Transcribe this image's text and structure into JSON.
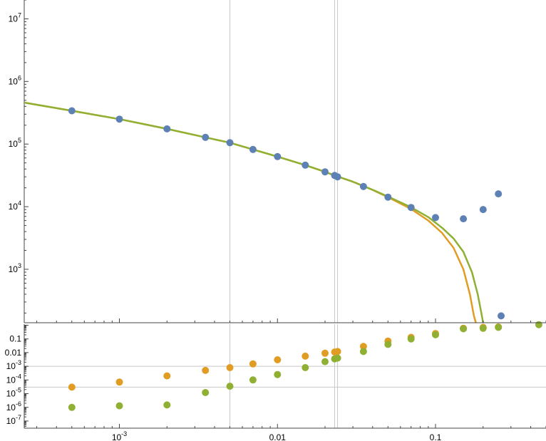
{
  "chart_data": [
    {
      "type": "scatter",
      "title": "",
      "xlabel": "",
      "ylabel": "",
      "x_scale": "log",
      "y_scale": "log",
      "xlim": [
        0.00025,
        0.5
      ],
      "ylim": [
        140,
        20000000
      ],
      "grid": "vertical reference lines at x = 0.005, 0.023, 0.024",
      "vlines": [
        0.005,
        0.023,
        0.024
      ],
      "y_tick_labels": [
        {
          "value": 1000,
          "base": "10",
          "exp": "3"
        },
        {
          "value": 10000,
          "base": "10",
          "exp": "4"
        },
        {
          "value": 100000,
          "base": "10",
          "exp": "5"
        },
        {
          "value": 1000000,
          "base": "10",
          "exp": "6"
        },
        {
          "value": 10000000,
          "base": "10",
          "exp": "7"
        }
      ],
      "series": [
        {
          "kind": "points",
          "color": "#5e81b5",
          "x": [
            0.0005,
            0.001,
            0.002,
            0.0035,
            0.005,
            0.007,
            0.01,
            0.015,
            0.02,
            0.023,
            0.024,
            0.035,
            0.05,
            0.07,
            0.1,
            0.15,
            0.2,
            0.25,
            0.26
          ],
          "y": [
            340000,
            250000,
            175000,
            128000,
            105000,
            82000,
            63000,
            46000,
            36000,
            31500,
            30000,
            21000,
            14200,
            9700,
            6700,
            6400,
            9000,
            16000,
            180
          ]
        },
        {
          "kind": "line",
          "color": "#e19c24",
          "x": [
            0.00025,
            0.0005,
            0.001,
            0.002,
            0.0035,
            0.005,
            0.007,
            0.01,
            0.015,
            0.02,
            0.023,
            0.03,
            0.04,
            0.05,
            0.07,
            0.09,
            0.11,
            0.13,
            0.15,
            0.165,
            0.175,
            0.18
          ],
          "y": [
            460000,
            340000,
            250000,
            175000,
            128000,
            105000,
            82000,
            63000,
            46000,
            36000,
            31500,
            25000,
            18500,
            14200,
            9200,
            6000,
            3800,
            2200,
            1000,
            400,
            180,
            140
          ]
        },
        {
          "kind": "line",
          "color": "#8fb032",
          "x": [
            0.00025,
            0.0005,
            0.001,
            0.002,
            0.0035,
            0.005,
            0.007,
            0.01,
            0.015,
            0.02,
            0.023,
            0.03,
            0.04,
            0.05,
            0.07,
            0.09,
            0.11,
            0.13,
            0.15,
            0.17,
            0.185,
            0.195,
            0.2
          ],
          "y": [
            460000,
            340000,
            250000,
            175000,
            128000,
            105000,
            82000,
            63000,
            46000,
            36000,
            31500,
            25000,
            18600,
            14500,
            9800,
            6800,
            4600,
            3100,
            1900,
            900,
            400,
            200,
            140
          ]
        }
      ]
    },
    {
      "type": "scatter",
      "title": "",
      "xlabel": "",
      "ylabel": "",
      "x_scale": "log",
      "y_scale": "log",
      "xlim": [
        0.00025,
        0.5
      ],
      "ylim": [
        3e-08,
        1.2
      ],
      "grid": "horizontal reference lines at y = 0.001 and 0.00003; vertical lines at x = 0.005, 0.023, 0.024",
      "hlines": [
        0.001,
        3e-05
      ],
      "vlines": [
        0.005,
        0.023,
        0.024
      ],
      "y_tick_labels": [
        {
          "value": 1e-07,
          "base": "10",
          "exp": "-7"
        },
        {
          "value": 1e-06,
          "base": "10",
          "exp": "-6"
        },
        {
          "value": 1e-05,
          "base": "10",
          "exp": "-5"
        },
        {
          "value": 0.0001,
          "base": "10",
          "exp": "-4"
        },
        {
          "value": 0.001,
          "base": "10",
          "exp": "-3"
        },
        {
          "value": 0.01,
          "base": "0.01",
          "exp": ""
        },
        {
          "value": 0.1,
          "base": "0.1",
          "exp": ""
        }
      ],
      "x_tick_labels": [
        {
          "value": 0.001,
          "base": "10",
          "exp": "-3"
        },
        {
          "value": 0.01,
          "base": "0.01",
          "exp": ""
        },
        {
          "value": 0.1,
          "base": "0.1",
          "exp": ""
        }
      ],
      "series": [
        {
          "kind": "points",
          "color": "#e19c24",
          "x": [
            0.0005,
            0.001,
            0.002,
            0.0035,
            0.005,
            0.007,
            0.01,
            0.015,
            0.02,
            0.023,
            0.024,
            0.035,
            0.05,
            0.07,
            0.1,
            0.15,
            0.2,
            0.25
          ],
          "y": [
            3e-05,
            7e-05,
            0.0002,
            0.0005,
            0.0008,
            0.0015,
            0.003,
            0.0055,
            0.009,
            0.011,
            0.012,
            0.028,
            0.07,
            0.13,
            0.25,
            0.6,
            0.7,
            0.75
          ]
        },
        {
          "kind": "points",
          "color": "#8fb032",
          "x": [
            0.0005,
            0.001,
            0.002,
            0.0035,
            0.005,
            0.007,
            0.01,
            0.015,
            0.02,
            0.023,
            0.024,
            0.035,
            0.05,
            0.07,
            0.1,
            0.15,
            0.2,
            0.25,
            0.45
          ],
          "y": [
            1e-06,
            1.3e-06,
            1.5e-06,
            1.2e-05,
            3.5e-05,
            0.0001,
            0.00025,
            0.0008,
            0.0022,
            0.0035,
            0.004,
            0.012,
            0.04,
            0.1,
            0.2,
            0.55,
            0.6,
            0.7,
            1.1
          ]
        }
      ]
    }
  ]
}
